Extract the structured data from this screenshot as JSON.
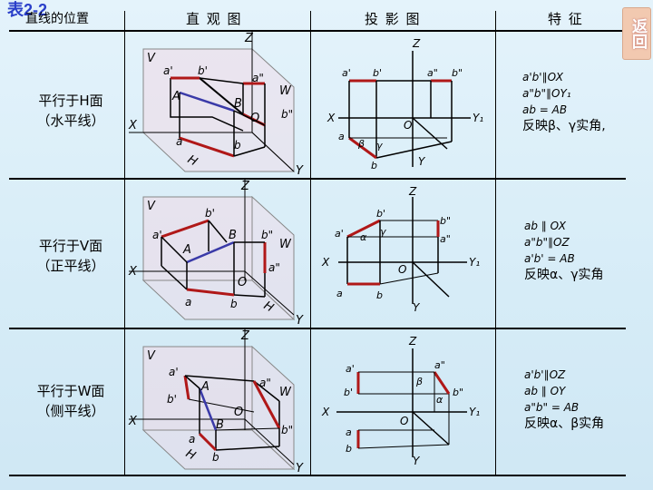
{
  "title": "表2-2",
  "back_button": "返回",
  "headers": [
    "直线的位置",
    "直 观 图",
    "投 影 图",
    "特 征"
  ],
  "rows": [
    {
      "position_lines": [
        "平行于H面",
        "（水平线）"
      ],
      "features": [
        "a'b'∥OX",
        "a\"b\"∥OY₁",
        "ab = AB",
        "反映β、γ实角,"
      ]
    },
    {
      "position_lines": [
        "平行于V面",
        "（正平线）"
      ],
      "features": [
        "ab ∥ OX",
        "a\"b\"∥OZ",
        "a'b' = AB",
        "反映α、γ实角"
      ]
    },
    {
      "position_lines": [
        "平行于W面",
        "（侧平线）"
      ],
      "features": [
        "a'b'∥OZ",
        "ab ∥ OY",
        "a\"b\" = AB",
        "反映α、β实角"
      ]
    }
  ],
  "labels": {
    "Z": "Z",
    "X": "X",
    "Y": "Y",
    "Y1": "Y₁",
    "O": "O",
    "V": "V",
    "H": "H",
    "W": "W",
    "A": "A",
    "B": "B",
    "a": "a",
    "b": "b",
    "a1": "a'",
    "b1": "b'",
    "a2": "a\"",
    "b2": "b\"",
    "alpha": "α",
    "beta": "β",
    "gamma": "γ"
  },
  "colors": {
    "projection_line": "#b01818",
    "space_line": "#3a3aa8",
    "frame": "#000000"
  }
}
